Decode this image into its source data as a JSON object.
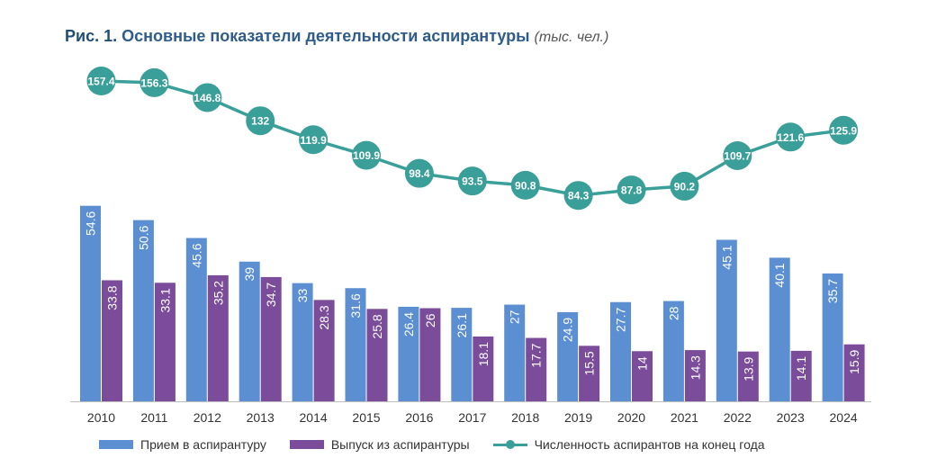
{
  "title": {
    "prefix": "Рис. 1.",
    "main": "Основные показатели деятельности аспирантуры",
    "unit": "(тыс. чел.)"
  },
  "colors": {
    "admission": "#5b8fd1",
    "graduation": "#7a4c9a",
    "line": "#3a9f98"
  },
  "chart_data": {
    "type": "bar",
    "categories": [
      "2010",
      "2011",
      "2012",
      "2013",
      "2014",
      "2015",
      "2016",
      "2017",
      "2018",
      "2019",
      "2020",
      "2021",
      "2022",
      "2023",
      "2024"
    ],
    "series": [
      {
        "name": "Прием в аспирантуру",
        "type": "bar",
        "values": [
          54.6,
          50.6,
          45.6,
          39,
          33,
          31.6,
          26.4,
          26.1,
          27,
          24.9,
          27.7,
          28,
          45.1,
          40.1,
          35.7
        ]
      },
      {
        "name": "Выпуск из аспирантуры",
        "type": "bar",
        "values": [
          33.8,
          33.1,
          35.2,
          34.7,
          28.3,
          25.8,
          26,
          18.1,
          17.7,
          15.5,
          14,
          14.3,
          13.9,
          14.1,
          15.9
        ]
      },
      {
        "name": "Численность аспирантов на конец года",
        "type": "line",
        "values": [
          157.4,
          156.3,
          146.8,
          132,
          119.9,
          109.9,
          98.4,
          93.5,
          90.8,
          84.3,
          87.8,
          90.2,
          109.7,
          121.6,
          125.9
        ]
      }
    ],
    "legend_position": "bottom",
    "grid": false
  }
}
